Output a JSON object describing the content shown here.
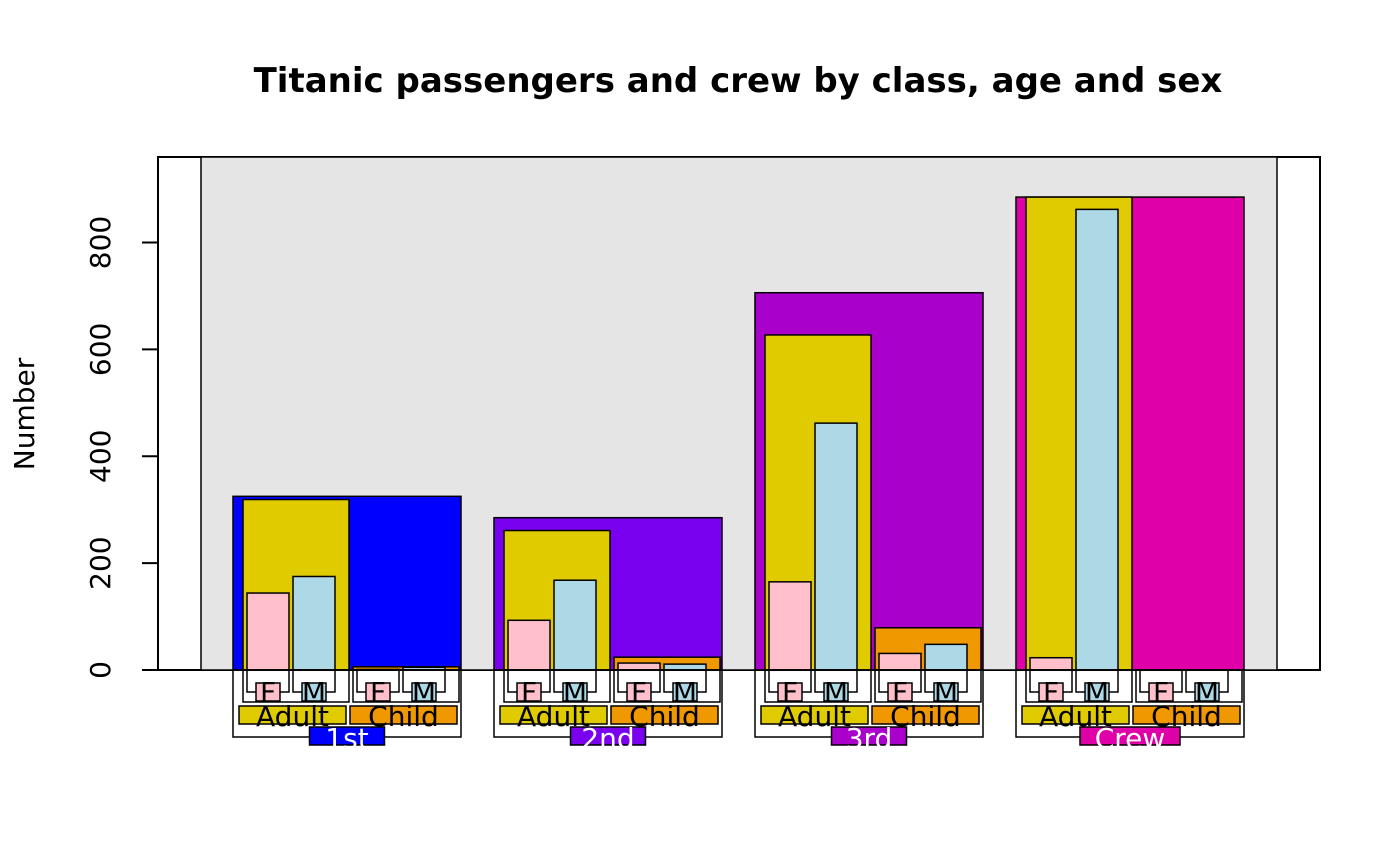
{
  "chart_data": {
    "type": "bar",
    "title": "Titanic passengers and crew by class, age and sex",
    "xlabel": "",
    "ylabel": "Number",
    "ylim": [
      0,
      960
    ],
    "yticks": [
      0,
      200,
      400,
      600,
      800
    ],
    "grid": false,
    "legend": "none",
    "colors": {
      "panel": "#e5e5e5",
      "female": "#ffc0cb",
      "male": "#add8e6",
      "adult": "#dfcb00",
      "child": "#f09800",
      "class_1st": "#0000ff",
      "class_2nd": "#7a00f0",
      "class_3rd": "#aa00cc",
      "class_crew": "#e000aa"
    },
    "classes": [
      {
        "label": "1st",
        "total": 325,
        "color": "#0000ff",
        "label_color": "#ffffff",
        "ages": [
          {
            "label": "Adult",
            "total": 319,
            "color": "#dfcb00",
            "sexes": [
              {
                "label": "F",
                "value": 144,
                "color": "#ffc0cb"
              },
              {
                "label": "M",
                "value": 175,
                "color": "#add8e6"
              }
            ]
          },
          {
            "label": "Child",
            "total": 6,
            "color": "#f09800",
            "sexes": [
              {
                "label": "F",
                "value": 1,
                "color": "#ffc0cb"
              },
              {
                "label": "M",
                "value": 5,
                "color": "#add8e6"
              }
            ]
          }
        ]
      },
      {
        "label": "2nd",
        "total": 285,
        "color": "#7a00f0",
        "label_color": "#ffffff",
        "ages": [
          {
            "label": "Adult",
            "total": 261,
            "color": "#dfcb00",
            "sexes": [
              {
                "label": "F",
                "value": 93,
                "color": "#ffc0cb"
              },
              {
                "label": "M",
                "value": 168,
                "color": "#add8e6"
              }
            ]
          },
          {
            "label": "Child",
            "total": 24,
            "color": "#f09800",
            "sexes": [
              {
                "label": "F",
                "value": 13,
                "color": "#ffc0cb"
              },
              {
                "label": "M",
                "value": 11,
                "color": "#add8e6"
              }
            ]
          }
        ]
      },
      {
        "label": "3rd",
        "total": 706,
        "color": "#aa00cc",
        "label_color": "#ffffff",
        "ages": [
          {
            "label": "Adult",
            "total": 627,
            "color": "#dfcb00",
            "sexes": [
              {
                "label": "F",
                "value": 165,
                "color": "#ffc0cb"
              },
              {
                "label": "M",
                "value": 462,
                "color": "#add8e6"
              }
            ]
          },
          {
            "label": "Child",
            "total": 79,
            "color": "#f09800",
            "sexes": [
              {
                "label": "F",
                "value": 31,
                "color": "#ffc0cb"
              },
              {
                "label": "M",
                "value": 48,
                "color": "#add8e6"
              }
            ]
          }
        ]
      },
      {
        "label": "Crew",
        "total": 885,
        "color": "#e000aa",
        "label_color": "#ffffff",
        "ages": [
          {
            "label": "Adult",
            "total": 885,
            "color": "#dfcb00",
            "sexes": [
              {
                "label": "F",
                "value": 23,
                "color": "#ffc0cb"
              },
              {
                "label": "M",
                "value": 862,
                "color": "#add8e6"
              }
            ]
          },
          {
            "label": "Child",
            "total": 0,
            "color": "#f09800",
            "sexes": [
              {
                "label": "F",
                "value": 0,
                "color": "#ffc0cb"
              },
              {
                "label": "M",
                "value": 0,
                "color": "#add8e6"
              }
            ]
          }
        ]
      }
    ]
  }
}
